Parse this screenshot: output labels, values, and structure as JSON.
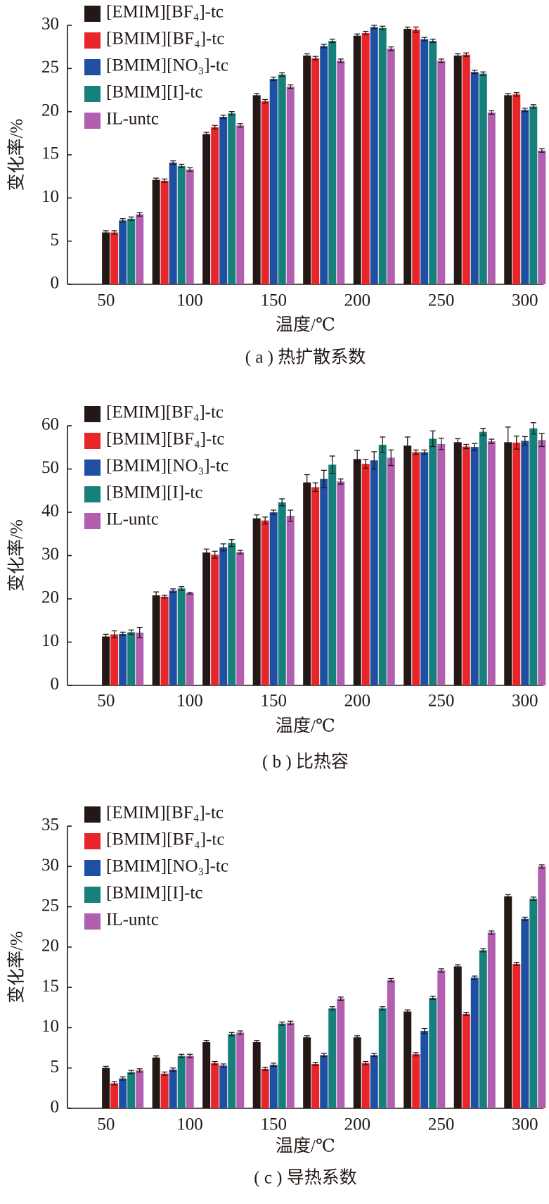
{
  "chart_data": [
    {
      "type": "bar",
      "title": "( a ) 热扩散系数",
      "x_label": "温度/℃",
      "y_label": "变化率/%",
      "x": [
        60,
        90,
        120,
        150,
        180,
        210,
        240,
        270,
        300
      ],
      "xlim": [
        27,
        311
      ],
      "xticks": [
        50,
        100,
        150,
        200,
        250,
        300
      ],
      "ylim": [
        0,
        30
      ],
      "yticks": [
        0,
        5,
        10,
        15,
        20,
        25,
        30
      ],
      "series": [
        {
          "name": "[EMIM][BF₄]-tc",
          "color": "#231815",
          "values": [
            6.0,
            12.1,
            17.4,
            21.9,
            26.5,
            28.8,
            29.6,
            26.5,
            21.9
          ],
          "errors": [
            0.2,
            0.2,
            0.2,
            0.2,
            0.2,
            0.2,
            0.2,
            0.2,
            0.2
          ]
        },
        {
          "name": "[BMIM][BF₄]-tc",
          "color": "#e8262a",
          "values": [
            6.0,
            12.0,
            18.2,
            21.2,
            26.2,
            29.1,
            29.5,
            26.6,
            22.0
          ],
          "errors": [
            0.2,
            0.2,
            0.2,
            0.2,
            0.2,
            0.2,
            0.3,
            0.2,
            0.2
          ]
        },
        {
          "name": "[BMIM][NO₃]-tc",
          "color": "#1e4fa3",
          "values": [
            7.4,
            14.1,
            19.4,
            23.8,
            27.6,
            29.8,
            28.4,
            24.6,
            20.2
          ],
          "errors": [
            0.2,
            0.2,
            0.2,
            0.2,
            0.2,
            0.2,
            0.2,
            0.2,
            0.2
          ]
        },
        {
          "name": "[BMIM][I]-tc",
          "color": "#17807a",
          "values": [
            7.6,
            13.7,
            19.8,
            24.3,
            28.2,
            29.7,
            28.2,
            24.4,
            20.6
          ],
          "errors": [
            0.2,
            0.2,
            0.2,
            0.2,
            0.2,
            0.2,
            0.2,
            0.2,
            0.2
          ]
        },
        {
          "name": "IL-untc",
          "color": "#b25fb0",
          "values": [
            8.1,
            13.3,
            18.4,
            22.9,
            25.9,
            27.3,
            25.9,
            19.9,
            15.5
          ],
          "errors": [
            0.2,
            0.2,
            0.2,
            0.2,
            0.2,
            0.2,
            0.2,
            0.2,
            0.2
          ]
        }
      ]
    },
    {
      "type": "bar",
      "title": "( b ) 比热容",
      "x_label": "温度/℃",
      "y_label": "变化率/%",
      "x": [
        60,
        90,
        120,
        150,
        180,
        210,
        240,
        270,
        300
      ],
      "xlim": [
        27,
        311
      ],
      "xticks": [
        50,
        100,
        150,
        200,
        250,
        300
      ],
      "ylim": [
        0,
        60
      ],
      "yticks": [
        0,
        10,
        20,
        30,
        40,
        50,
        60
      ],
      "series": [
        {
          "name": "[EMIM][BF₄]-tc",
          "color": "#231815",
          "values": [
            11.3,
            20.8,
            30.7,
            38.6,
            46.9,
            52.3,
            55.4,
            56.2,
            56.2
          ],
          "errors": [
            0.5,
            0.8,
            0.8,
            0.8,
            1.8,
            2.0,
            2.0,
            0.8,
            3.5
          ]
        },
        {
          "name": "[BMIM][BF₄]-tc",
          "color": "#e8262a",
          "values": [
            11.8,
            20.5,
            30.2,
            38.1,
            45.8,
            51.2,
            53.9,
            55.2,
            56.1
          ],
          "errors": [
            0.8,
            0.3,
            0.8,
            0.8,
            1.0,
            1.0,
            0.5,
            0.5,
            1.5
          ]
        },
        {
          "name": "[BMIM][NO₃]-tc",
          "color": "#1e4fa3",
          "values": [
            11.9,
            21.9,
            31.9,
            40.0,
            47.7,
            52.0,
            53.9,
            55.1,
            56.5
          ],
          "errors": [
            0.4,
            0.4,
            0.8,
            0.5,
            2.0,
            2.0,
            0.5,
            0.8,
            1.0
          ]
        },
        {
          "name": "[BMIM][I]-tc",
          "color": "#17807a",
          "values": [
            12.3,
            22.4,
            32.9,
            42.3,
            51.0,
            55.6,
            57.0,
            58.6,
            59.4
          ],
          "errors": [
            0.5,
            0.4,
            0.8,
            0.8,
            2.0,
            1.8,
            1.8,
            0.8,
            1.3
          ]
        },
        {
          "name": "IL-untc",
          "color": "#b25fb0",
          "values": [
            12.2,
            21.3,
            30.8,
            39.2,
            47.1,
            52.6,
            55.8,
            56.4,
            56.7
          ],
          "errors": [
            1.2,
            0.2,
            0.4,
            1.3,
            0.6,
            1.8,
            1.3,
            0.5,
            1.5
          ]
        }
      ]
    },
    {
      "type": "bar",
      "title": "( c ) 导热系数",
      "x_label": "温度/℃",
      "y_label": "变化率/%",
      "x": [
        60,
        90,
        120,
        150,
        180,
        210,
        240,
        270,
        300
      ],
      "xlim": [
        27,
        311
      ],
      "xticks": [
        50,
        100,
        150,
        200,
        250,
        300
      ],
      "ylim": [
        0,
        35
      ],
      "yticks": [
        0,
        5,
        10,
        15,
        20,
        25,
        30,
        35
      ],
      "series": [
        {
          "name": "[EMIM][BF₄]-tc",
          "color": "#231815",
          "values": [
            5.0,
            6.3,
            8.2,
            8.2,
            8.8,
            8.8,
            12.0,
            17.6,
            26.3
          ],
          "errors": [
            0.2,
            0.2,
            0.2,
            0.2,
            0.2,
            0.2,
            0.2,
            0.2,
            0.2
          ]
        },
        {
          "name": "[BMIM][BF₄]-tc",
          "color": "#e8262a",
          "values": [
            3.1,
            4.3,
            5.6,
            4.9,
            5.5,
            5.6,
            6.7,
            11.7,
            17.9
          ],
          "errors": [
            0.2,
            0.2,
            0.2,
            0.2,
            0.2,
            0.2,
            0.2,
            0.2,
            0.2
          ]
        },
        {
          "name": "[BMIM][NO₃]-tc",
          "color": "#1e4fa3",
          "values": [
            3.7,
            4.8,
            5.3,
            5.4,
            6.6,
            6.6,
            9.6,
            16.2,
            23.5
          ],
          "errors": [
            0.2,
            0.2,
            0.2,
            0.2,
            0.2,
            0.2,
            0.3,
            0.2,
            0.2
          ]
        },
        {
          "name": "[BMIM][I]-tc",
          "color": "#17807a",
          "values": [
            4.5,
            6.5,
            9.2,
            10.5,
            12.4,
            12.4,
            13.7,
            19.6,
            26.0
          ],
          "errors": [
            0.2,
            0.2,
            0.2,
            0.2,
            0.2,
            0.2,
            0.2,
            0.2,
            0.2
          ]
        },
        {
          "name": "IL-untc",
          "color": "#b25fb0",
          "values": [
            4.7,
            6.5,
            9.4,
            10.6,
            13.6,
            15.9,
            17.1,
            21.8,
            30.0
          ],
          "errors": [
            0.2,
            0.2,
            0.2,
            0.2,
            0.2,
            0.2,
            0.2,
            0.2,
            0.2
          ]
        }
      ]
    }
  ]
}
